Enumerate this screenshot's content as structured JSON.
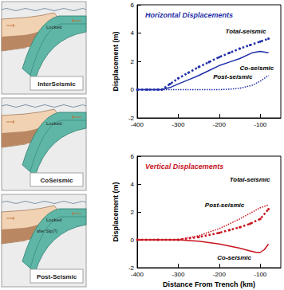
{
  "panels": [
    {
      "label": "InterSeismic",
      "annotation": "Locked"
    },
    {
      "label": "CoSeismic",
      "annotation": "Locked"
    },
    {
      "label": "Post-Seismic",
      "annotation": "Locked",
      "note": "after Slip(?)"
    }
  ],
  "chart_data": [
    {
      "type": "line",
      "title": "Horizontal Displacements",
      "title_color": "#1f2fa8",
      "ylabel": "Displacement (m)",
      "xlim": [
        -400,
        -50
      ],
      "xticks": [
        -400,
        -300,
        -200,
        -100
      ],
      "ylim": [
        -2,
        6
      ],
      "yticks": [
        -2,
        0,
        2,
        4,
        6
      ],
      "grid": false,
      "series": [
        {
          "name": "Total-seismic",
          "color": "#1f2fa8",
          "line_style": "dotted",
          "marker": "circle",
          "x": [
            -400,
            -375,
            -350,
            -340,
            -320,
            -300,
            -275,
            -250,
            -225,
            -200,
            -175,
            -150,
            -125,
            -100,
            -80
          ],
          "values": [
            0,
            0,
            0,
            0,
            0.4,
            0.8,
            1.2,
            1.6,
            1.95,
            2.3,
            2.6,
            2.9,
            3.15,
            3.4,
            3.6
          ]
        },
        {
          "name": "Co-seismic",
          "color": "#1f2fa8",
          "line_style": "solid",
          "marker": "none",
          "x": [
            -400,
            -340,
            -320,
            -300,
            -275,
            -250,
            -225,
            -200,
            -175,
            -150,
            -120,
            -100,
            -80
          ],
          "values": [
            0,
            0,
            0.15,
            0.4,
            0.7,
            1.0,
            1.35,
            1.7,
            1.95,
            2.2,
            2.6,
            2.7,
            2.6
          ]
        },
        {
          "name": "Post-seismic",
          "color": "#1f2fa8",
          "line_style": "dotted",
          "marker": "none",
          "x": [
            -400,
            -300,
            -200,
            -175,
            -150,
            -120,
            -100,
            -80
          ],
          "values": [
            0,
            0,
            0,
            0.03,
            0.1,
            0.3,
            0.6,
            1.0
          ]
        }
      ],
      "annotations": [
        {
          "text": "Total-seismic",
          "x": -185,
          "y": 4.1
        },
        {
          "text": "Co-seismic",
          "x": -150,
          "y": 1.5
        },
        {
          "text": "Post-seismic",
          "x": -215,
          "y": 0.9
        }
      ]
    },
    {
      "type": "line",
      "title": "Vertical Displacements",
      "title_color": "#c8141e",
      "xlabel": "Distance From Trench (km)",
      "ylabel": "Displacement (m)",
      "xlim": [
        -400,
        -50
      ],
      "xticks": [
        -400,
        -300,
        -200,
        -100
      ],
      "ylim": [
        -2,
        6
      ],
      "yticks": [
        -2,
        0,
        2,
        4,
        6
      ],
      "grid": false,
      "series": [
        {
          "name": "Total-seismic",
          "color": "#c8141e",
          "line_style": "dotted",
          "marker": "circle",
          "x": [
            -400,
            -350,
            -300,
            -250,
            -200,
            -175,
            -150,
            -125,
            -100,
            -80
          ],
          "values": [
            0,
            0,
            0,
            0.2,
            0.5,
            0.7,
            0.9,
            1.15,
            1.5,
            2.2
          ]
        },
        {
          "name": "Post-seismic",
          "color": "#c8141e",
          "line_style": "dotted",
          "marker": "none",
          "x": [
            -400,
            -300,
            -250,
            -200,
            -175,
            -150,
            -125,
            -100,
            -80
          ],
          "values": [
            0,
            0,
            0.3,
            0.8,
            1.15,
            1.5,
            1.9,
            2.3,
            2.5
          ]
        },
        {
          "name": "Co-seismic",
          "color": "#c8141e",
          "line_style": "solid",
          "marker": "none",
          "x": [
            -400,
            -300,
            -250,
            -200,
            -150,
            -125,
            -110,
            -100,
            -90,
            -80
          ],
          "values": [
            0,
            0,
            -0.1,
            -0.3,
            -0.6,
            -0.8,
            -0.9,
            -0.9,
            -0.7,
            -0.3
          ]
        }
      ],
      "annotations": [
        {
          "text": "Total-seismic",
          "x": -175,
          "y": 4.3
        },
        {
          "text": "Post-seismic",
          "x": -235,
          "y": 2.5
        },
        {
          "text": "Co-seismic",
          "x": -205,
          "y": -1.3
        }
      ]
    }
  ]
}
